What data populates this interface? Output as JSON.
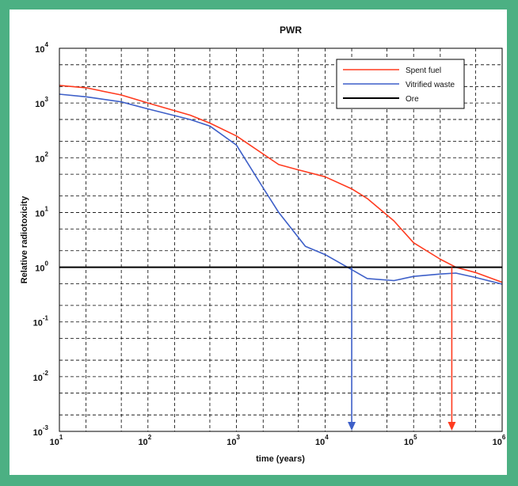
{
  "chart_data": {
    "type": "line",
    "title": "PWR",
    "xlabel": "time (years)",
    "ylabel": "Relative radiotoxicity",
    "xscale": "log",
    "yscale": "log",
    "xlim": [
      10,
      1000000
    ],
    "ylim": [
      0.001,
      10000
    ],
    "grid": "dashed",
    "legend_position": "top-right",
    "x_ticks": [
      {
        "base": "10",
        "exp": "1",
        "value": 10
      },
      {
        "base": "10",
        "exp": "2",
        "value": 100
      },
      {
        "base": "10",
        "exp": "3",
        "value": 1000
      },
      {
        "base": "10",
        "exp": "4",
        "value": 10000
      },
      {
        "base": "10",
        "exp": "5",
        "value": 100000
      },
      {
        "base": "10",
        "exp": "6",
        "value": 1000000
      }
    ],
    "y_ticks": [
      {
        "base": "10",
        "exp": "4",
        "value": 10000
      },
      {
        "base": "10",
        "exp": "3",
        "value": 1000
      },
      {
        "base": "10",
        "exp": "2",
        "value": 100
      },
      {
        "base": "10",
        "exp": "1",
        "value": 10
      },
      {
        "base": "10",
        "exp": "0",
        "value": 1
      },
      {
        "base": "10",
        "exp": "-1",
        "value": 0.1
      },
      {
        "base": "10",
        "exp": "-2",
        "value": 0.01
      },
      {
        "base": "10",
        "exp": "-3",
        "value": 0.001
      }
    ],
    "series": [
      {
        "name": "Spent fuel",
        "color": "#ff3b1f",
        "points": [
          [
            10,
            2100
          ],
          [
            20,
            1900
          ],
          [
            50,
            1400
          ],
          [
            100,
            1000
          ],
          [
            300,
            600
          ],
          [
            500,
            430
          ],
          [
            1000,
            250
          ],
          [
            3000,
            75
          ],
          [
            5000,
            60
          ],
          [
            10000,
            45
          ],
          [
            20000,
            27
          ],
          [
            30000,
            18
          ],
          [
            60000,
            7
          ],
          [
            100000,
            2.8
          ],
          [
            200000,
            1.4
          ],
          [
            300000,
            1.0
          ],
          [
            500000,
            0.8
          ],
          [
            1000000,
            0.53
          ]
        ]
      },
      {
        "name": "Vitrified waste",
        "color": "#3d5fc8",
        "points": [
          [
            10,
            1450
          ],
          [
            20,
            1300
          ],
          [
            50,
            1050
          ],
          [
            100,
            780
          ],
          [
            300,
            500
          ],
          [
            500,
            380
          ],
          [
            1000,
            170
          ],
          [
            2000,
            28
          ],
          [
            3000,
            10
          ],
          [
            6000,
            2.4
          ],
          [
            10000,
            1.7
          ],
          [
            20000,
            0.9
          ],
          [
            30000,
            0.62
          ],
          [
            60000,
            0.57
          ],
          [
            100000,
            0.68
          ],
          [
            200000,
            0.75
          ],
          [
            300000,
            0.78
          ],
          [
            500000,
            0.65
          ],
          [
            1000000,
            0.49
          ]
        ]
      },
      {
        "name": "Ore",
        "color": "#000000",
        "points": [
          [
            10,
            1
          ],
          [
            1000000,
            1
          ]
        ]
      }
    ],
    "annotations": [
      {
        "type": "arrow",
        "x": 20000,
        "color": "#3d5fc8"
      },
      {
        "type": "arrow",
        "x": 270000,
        "color": "#ff3b1f"
      }
    ]
  }
}
